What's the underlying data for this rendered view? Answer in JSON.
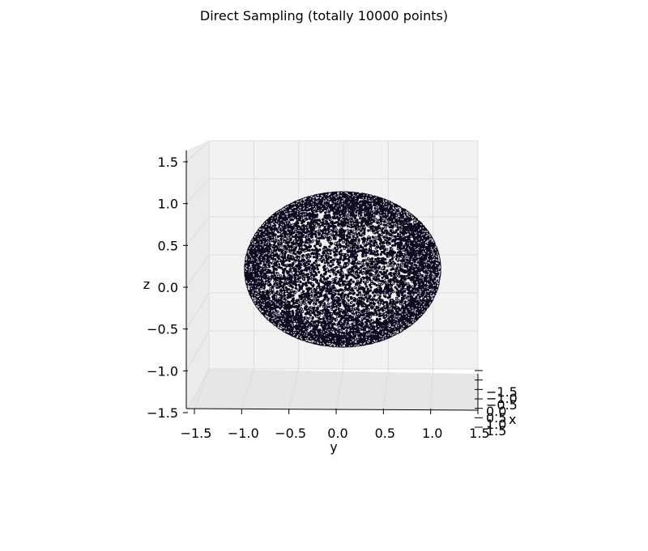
{
  "chart_data": {
    "type": "scatter",
    "title": "Direct Sampling (totally 10000 points)",
    "projection": "3d",
    "n_points": 10000,
    "distribution": "uniform on unit sphere surface (direct sampling)",
    "radius": 1.0,
    "xlabel": "x",
    "ylabel": "y",
    "zlabel": "z",
    "xlim": [
      -1.5,
      1.5
    ],
    "ylim": [
      -1.5,
      1.5
    ],
    "zlim": [
      -1.5,
      1.5
    ],
    "x_ticks": [
      -1.5,
      -1.0,
      -0.5,
      0.0,
      0.5,
      1.0,
      1.5
    ],
    "y_ticks": [
      -1.5,
      -1.0,
      -0.5,
      0.0,
      0.5,
      1.0,
      1.5
    ],
    "z_ticks": [
      -1.5,
      -1.0,
      -0.5,
      0.0,
      0.5,
      1.0,
      1.5
    ],
    "x_tick_labels": [
      "−1.5",
      "−1.0",
      "−0.5",
      "0.0",
      "0.5",
      "1.0",
      "1.5"
    ],
    "y_tick_labels": [
      "−1.5",
      "−1.0",
      "−0.5",
      "0.0",
      "0.5",
      "1.0",
      "1.5"
    ],
    "z_tick_labels": [
      "−1.5",
      "−1.0",
      "−0.5",
      "0.0",
      "0.5",
      "1.0",
      "1.5"
    ],
    "point_color": "#0c0a1e",
    "highlight_color": "#ffffff",
    "pane_color": "#f2f2f2",
    "grid": true,
    "view": {
      "elev_deg": 5,
      "azim_deg": 0
    }
  }
}
